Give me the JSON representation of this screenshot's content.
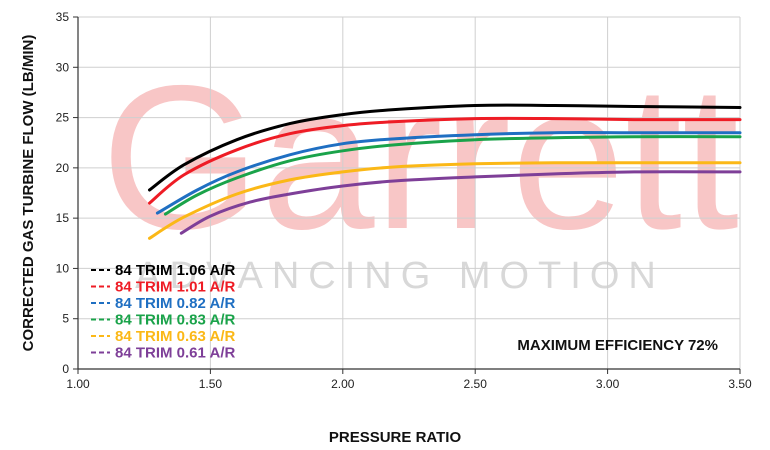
{
  "watermark": {
    "brand": "Garrett",
    "tagline": "ADVANCING MOTION"
  },
  "chart_data": {
    "type": "line",
    "title": "",
    "xlabel": "PRESSURE RATIO",
    "ylabel": "CORRECTED GAS TURBINE FLOW (LB/MIN)",
    "xlim": [
      1.0,
      3.5
    ],
    "ylim": [
      0,
      35
    ],
    "xticks": [
      "1.00",
      "1.50",
      "2.00",
      "2.50",
      "3.00",
      "3.50"
    ],
    "yticks": [
      "0",
      "5",
      "10",
      "15",
      "20",
      "25",
      "30",
      "35"
    ],
    "grid": true,
    "legend_position": "bottom-left",
    "annotation": "MAXIMUM EFFICIENCY 72%",
    "series": [
      {
        "name": "84 TRIM 1.06 A/R",
        "color": "#000000",
        "x": [
          1.27,
          1.4,
          1.6,
          1.8,
          2.0,
          2.2,
          2.5,
          2.8,
          3.1,
          3.5
        ],
        "y": [
          17.8,
          20.3,
          22.8,
          24.4,
          25.3,
          25.8,
          26.2,
          26.2,
          26.1,
          26.0
        ]
      },
      {
        "name": "84 TRIM 1.01 A/R",
        "color": "#ee1c25",
        "x": [
          1.27,
          1.4,
          1.6,
          1.8,
          2.0,
          2.2,
          2.5,
          2.8,
          3.1,
          3.5
        ],
        "y": [
          16.5,
          19.3,
          21.8,
          23.4,
          24.2,
          24.6,
          24.9,
          24.9,
          24.8,
          24.8
        ]
      },
      {
        "name": "84 TRIM 0.82 A/R",
        "color": "#1f6fc2",
        "x": [
          1.3,
          1.45,
          1.6,
          1.8,
          2.0,
          2.2,
          2.5,
          2.8,
          3.1,
          3.5
        ],
        "y": [
          15.5,
          17.8,
          19.6,
          21.3,
          22.4,
          22.9,
          23.3,
          23.5,
          23.5,
          23.5
        ]
      },
      {
        "name": "84 TRIM 0.83 A/R",
        "color": "#1aa34a",
        "x": [
          1.33,
          1.45,
          1.6,
          1.8,
          2.0,
          2.2,
          2.5,
          2.8,
          3.1,
          3.5
        ],
        "y": [
          15.4,
          17.3,
          19.0,
          20.7,
          21.7,
          22.3,
          22.8,
          23.0,
          23.1,
          23.1
        ]
      },
      {
        "name": "84 TRIM 0.63 A/R",
        "color": "#fbb817",
        "x": [
          1.27,
          1.4,
          1.6,
          1.8,
          2.0,
          2.2,
          2.5,
          2.8,
          3.1,
          3.5
        ],
        "y": [
          13.0,
          15.1,
          17.4,
          18.8,
          19.6,
          20.1,
          20.4,
          20.5,
          20.5,
          20.5
        ]
      },
      {
        "name": "84 TRIM 0.61 A/R",
        "color": "#7e3f98",
        "x": [
          1.39,
          1.5,
          1.65,
          1.8,
          2.0,
          2.2,
          2.5,
          2.8,
          3.1,
          3.5
        ],
        "y": [
          13.5,
          15.2,
          16.6,
          17.4,
          18.2,
          18.7,
          19.1,
          19.4,
          19.6,
          19.6
        ]
      }
    ]
  }
}
